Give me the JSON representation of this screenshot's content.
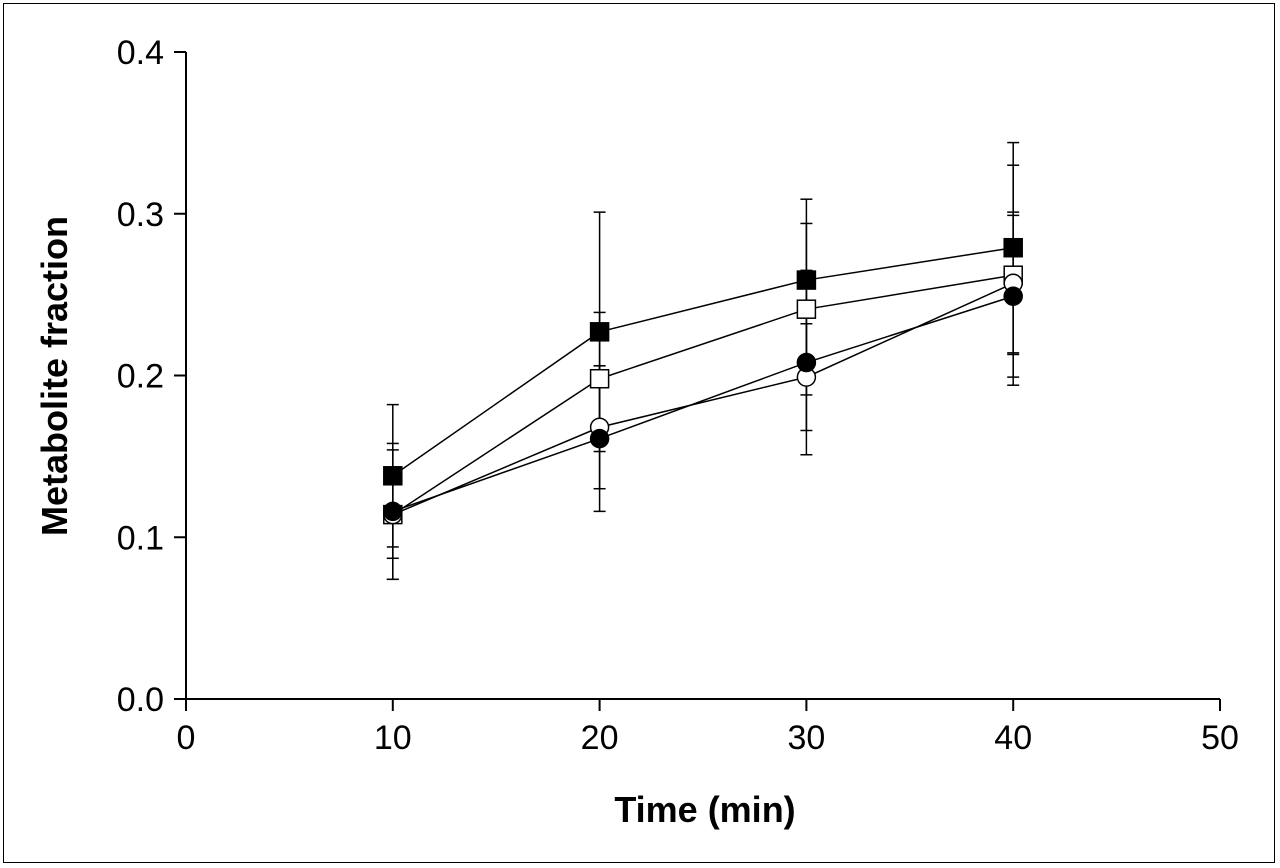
{
  "chart_data": {
    "type": "scatter",
    "xlabel": "Time (min)",
    "ylabel": "Metabolite fraction",
    "xlim": [
      0,
      50
    ],
    "ylim": [
      0.0,
      0.4
    ],
    "xticks": [
      "0",
      "10",
      "20",
      "30",
      "40",
      "50"
    ],
    "yticks": [
      "0.0",
      "0.1",
      "0.2",
      "0.3",
      "0.4"
    ],
    "grid": false,
    "series": [
      {
        "marker": "filled-square",
        "x": [
          10,
          20,
          30,
          40
        ],
        "y": [
          0.138,
          0.227,
          0.259,
          0.279
        ],
        "err": [
          0.044,
          0.074,
          0.05,
          0.065
        ]
      },
      {
        "marker": "open-square",
        "x": [
          10,
          20,
          30,
          40
        ],
        "y": [
          0.114,
          0.198,
          0.241,
          0.262
        ],
        "err": [
          0.04,
          0.041,
          0.053,
          0.068
        ]
      },
      {
        "marker": "open-circle",
        "x": [
          10,
          20,
          30,
          40
        ],
        "y": [
          0.114,
          0.168,
          0.199,
          0.257
        ],
        "err": [
          0.027,
          0.038,
          0.033,
          0.044
        ]
      },
      {
        "marker": "filled-circle",
        "x": [
          10,
          20,
          30,
          40
        ],
        "y": [
          0.116,
          0.161,
          0.208,
          0.249
        ],
        "err": [
          0.042,
          0.045,
          0.057,
          0.05
        ]
      }
    ]
  }
}
